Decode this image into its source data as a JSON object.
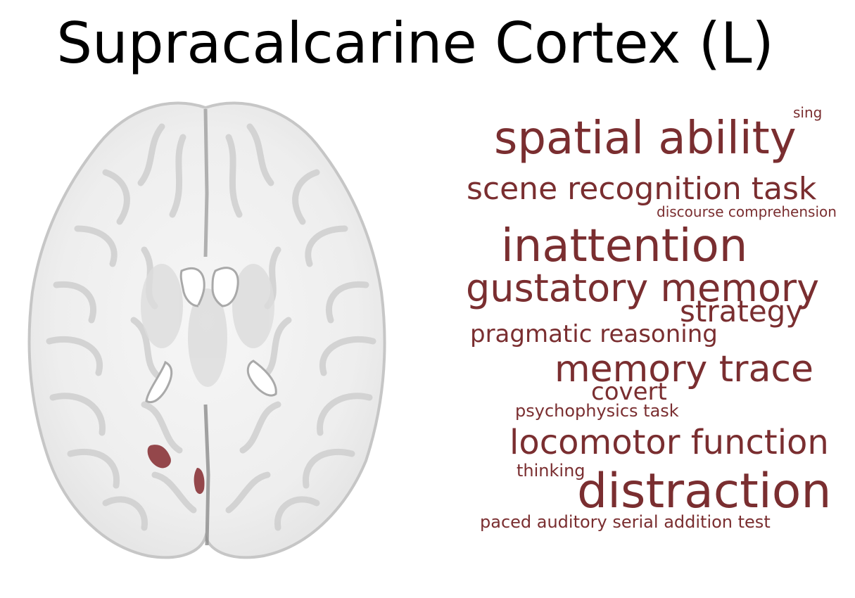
{
  "title": "Supracalcarine Cortex (L)",
  "colors": {
    "word": "#7a2e30",
    "highlight": "#8a3438",
    "brain_fill": "#f1f1f1",
    "brain_edge": "#c9c9c9"
  },
  "brain_image": {
    "view": "axial",
    "icon": "brain-slice-icon"
  },
  "word_cloud": {
    "words": [
      "sing",
      "spatial ability",
      "scene recognition task",
      "discourse comprehension",
      "inattention",
      "gustatory memory",
      "strategy",
      "pragmatic reasoning",
      "memory trace",
      "covert",
      "psychophysics task",
      "locomotor function",
      "thinking",
      "distraction",
      "paced auditory serial addition test"
    ]
  }
}
